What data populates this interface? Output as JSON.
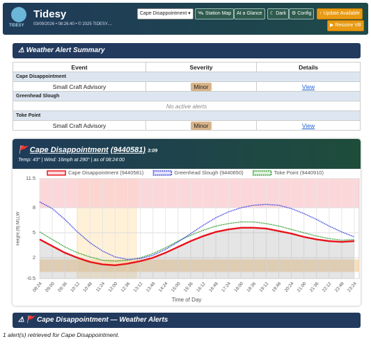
{
  "header": {
    "title": "Tidesy",
    "logo_text": "TIDESY",
    "subtitle": "03/09/2026 • 08:26:40 • © 2025 TIDESY....",
    "station_select": "Cape Disappointment",
    "buttons": [
      "🛰 Station Map",
      "At a Glance",
      "☾ Dark",
      "⚙ Config",
      "↑ Update Available"
    ],
    "resume_button": "▶ Resume VB"
  },
  "alert_summary": {
    "title": "⚠ Weather Alert Summary",
    "columns": [
      "Event",
      "Severity",
      "Details"
    ],
    "groups": [
      {
        "station": "Cape Disappointment",
        "event": "Small Craft Advisory",
        "severity": "Minor",
        "details": "View"
      },
      {
        "station": "Greenhead Slough",
        "empty": "No active alerts"
      },
      {
        "station": "Toke Point",
        "event": "Small Craft Advisory",
        "severity": "Minor",
        "details": "View"
      }
    ]
  },
  "station_card": {
    "name": "Cape Disappointment",
    "id": "(9440581)",
    "time": "3:09",
    "meta": "Temp: 43° | Wind: 16mph at 290° | as of 08:24:00"
  },
  "chart_data": {
    "type": "line",
    "x_label": "Time of Day",
    "y_label": "Height (ft) MLLW",
    "categories": [
      "08:24",
      "09:00",
      "09:36",
      "10:12",
      "10:48",
      "11:24",
      "12:00",
      "12:36",
      "13:12",
      "13:48",
      "14:24",
      "15:00",
      "15:36",
      "16:12",
      "16:48",
      "17:24",
      "18:00",
      "18:36",
      "19:12",
      "19:48",
      "20:24",
      "21:00",
      "21:36",
      "22:12",
      "22:48",
      "23:24"
    ],
    "series": [
      {
        "name": "Cape Disappointment (9440581)",
        "color": "#e8141c",
        "values": [
          4.2,
          3.4,
          2.6,
          2.0,
          1.5,
          1.2,
          1.1,
          1.3,
          1.6,
          2.0,
          2.6,
          3.3,
          4.0,
          4.6,
          5.1,
          5.4,
          5.6,
          5.6,
          5.5,
          5.2,
          4.9,
          4.5,
          4.2,
          4.0,
          3.9,
          4.0
        ]
      },
      {
        "name": "Greenhead Slough (9440650)",
        "color": "#3a3ee0",
        "values": [
          8.7,
          7.9,
          6.6,
          5.1,
          3.8,
          2.8,
          2.1,
          1.8,
          1.9,
          2.3,
          3.0,
          3.9,
          4.9,
          5.9,
          6.8,
          7.5,
          8.0,
          8.3,
          8.4,
          8.3,
          7.9,
          7.3,
          6.6,
          5.8,
          5.1,
          4.5
        ]
      },
      {
        "name": "Toke Point (9440910)",
        "color": "#2a9a2a",
        "values": [
          5.1,
          4.2,
          3.3,
          2.6,
          2.1,
          1.7,
          1.6,
          1.7,
          2.0,
          2.5,
          3.2,
          4.0,
          4.7,
          5.3,
          5.8,
          6.1,
          6.3,
          6.3,
          6.1,
          5.8,
          5.4,
          5.0,
          4.6,
          4.3,
          4.1,
          4.2
        ]
      }
    ],
    "ylim": [
      -0.5,
      11.5
    ],
    "yticks": [
      -0.5,
      2,
      5,
      8,
      11.5
    ],
    "grid": true,
    "shaded_ranges": [
      {
        "from": 8,
        "to": 11.5,
        "color": "#fbc9cd"
      },
      {
        "from": 0.3,
        "to": 1.8,
        "color": "#f3d3a6"
      }
    ]
  },
  "alerts_card": {
    "title": "⚠ 🚩 Cape Disappointment — Weather Alerts",
    "note": "1 alert(s) retrieved for Cape Disappointment."
  }
}
